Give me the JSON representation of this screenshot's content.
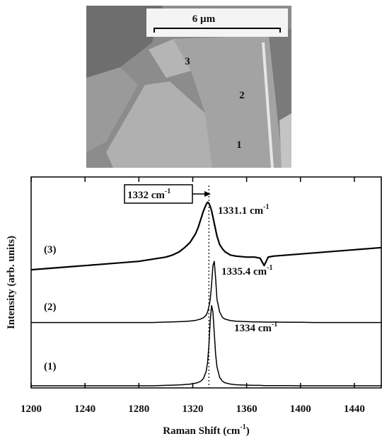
{
  "image": {
    "scale_bar": "6 µm",
    "points": [
      "1",
      "2",
      "3"
    ]
  },
  "chart_data": {
    "type": "line",
    "x_label": {
      "text": "Raman Shift (cm",
      "sup": "-1",
      "after": ")"
    },
    "y_label": "Intensity (arb. units)",
    "xlim": [
      1200,
      1460
    ],
    "xticks": [
      1200,
      1240,
      1280,
      1320,
      1360,
      1400,
      1440
    ],
    "ylim": [
      0,
      100
    ],
    "reference_line": 1332,
    "x": [
      1200,
      1210,
      1220,
      1230,
      1240,
      1250,
      1260,
      1270,
      1280,
      1290,
      1300,
      1305,
      1310,
      1314,
      1318,
      1322,
      1324,
      1326,
      1328,
      1330,
      1331,
      1332,
      1333,
      1334,
      1335,
      1336,
      1337,
      1338,
      1340,
      1342,
      1344,
      1348,
      1352,
      1360,
      1366,
      1370,
      1373,
      1376,
      1380,
      1390,
      1400,
      1410,
      1420,
      1430,
      1440,
      1450,
      1460
    ],
    "series": [
      {
        "name": "(1)",
        "color": "#000000",
        "values": [
          1,
          1,
          1,
          1,
          1,
          1,
          1,
          1,
          1,
          1,
          1.2,
          1.3,
          1.4,
          1.6,
          1.8,
          2.2,
          2.6,
          3.2,
          4.5,
          8,
          12,
          20,
          32,
          39,
          36,
          26,
          16,
          10,
          5,
          3.2,
          2.4,
          1.8,
          1.5,
          1.3,
          1.2,
          1.2,
          1.1,
          1.1,
          1.1,
          1.1,
          1,
          1,
          1,
          1,
          1,
          1,
          1
        ]
      },
      {
        "name": "(2)",
        "color": "#000000",
        "values": [
          31,
          31,
          31,
          31,
          31,
          31,
          31,
          31,
          31,
          31,
          31.2,
          31.3,
          31.4,
          31.5,
          31.7,
          32,
          32.3,
          32.7,
          33.3,
          34.5,
          36,
          38.5,
          42,
          49,
          58,
          60,
          52,
          42,
          36,
          33.5,
          32.6,
          31.9,
          31.6,
          31.4,
          31.3,
          31.3,
          31.2,
          31.2,
          31.2,
          31.1,
          31.1,
          31,
          31,
          31,
          31,
          31,
          31
        ]
      },
      {
        "name": "(3)",
        "color": "#000000",
        "values": [
          56,
          56.5,
          57,
          57.5,
          58,
          58.5,
          59,
          59.5,
          60,
          61,
          62,
          63,
          64.5,
          66.5,
          69,
          73,
          76,
          80,
          84,
          87,
          88,
          87.5,
          86,
          84,
          81,
          78,
          75,
          72,
          68,
          66,
          64.5,
          63,
          62.5,
          62,
          62,
          61.5,
          58,
          62,
          62.5,
          63,
          63.5,
          64,
          64.5,
          65,
          65.5,
          66,
          66.5
        ]
      }
    ],
    "annotations": [
      {
        "text": "1334 cm",
        "sup": "-1"
      },
      {
        "text": "1335.4 cm",
        "sup": "-1"
      },
      {
        "text": "1331.1 cm",
        "sup": "-1"
      },
      {
        "text": "1332 cm",
        "sup": "-1"
      }
    ]
  }
}
